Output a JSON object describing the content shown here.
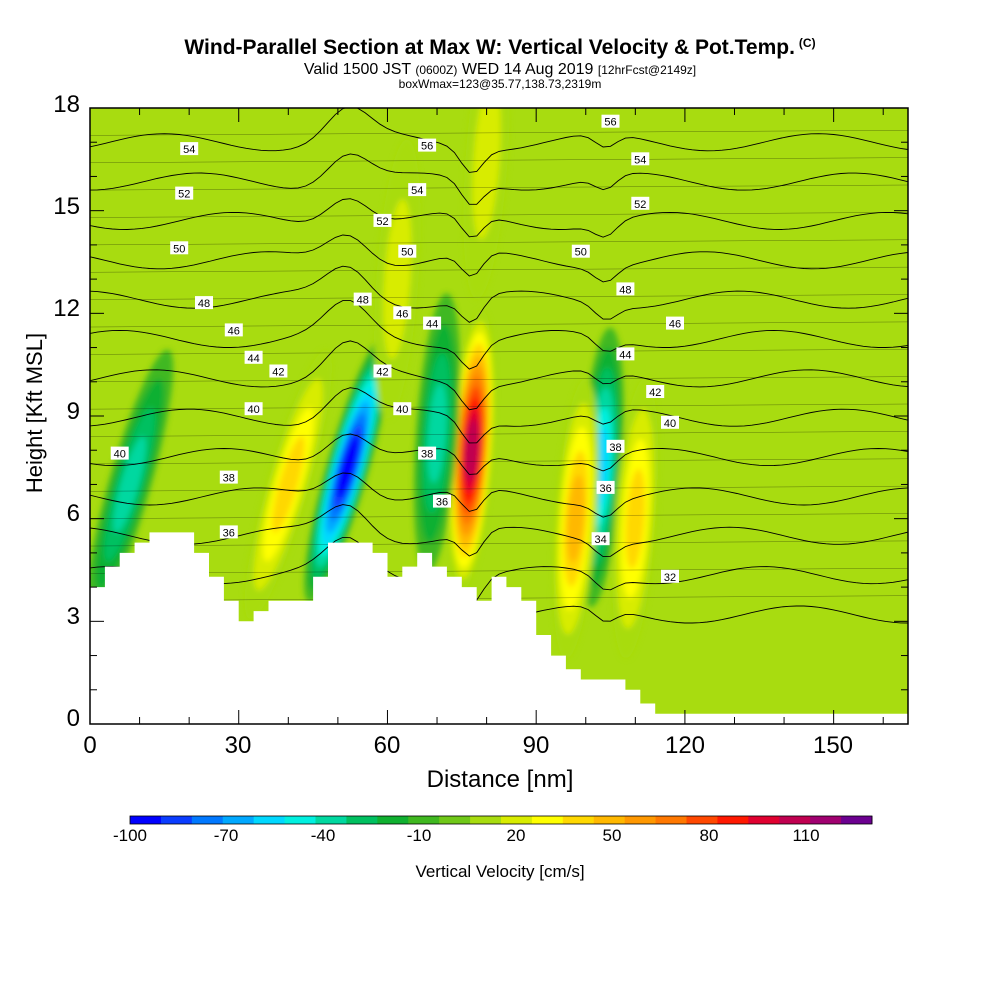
{
  "header": {
    "title": "Wind-Parallel Section at Max W: Vertical Velocity & Pot.Temp.",
    "copyright": "(C)",
    "valid_prefix": "Valid 1500 JST",
    "valid_utc": "(0600Z)",
    "valid_date": "WED 14 Aug 2019",
    "forecast": "[12hrFcst@2149z]",
    "boxwmax": "boxWmax=123@35.77,138.73,2319m"
  },
  "chart_data": {
    "type": "heatmap",
    "title": "Wind-Parallel Section at Max W: Vertical Velocity & Pot.Temp.",
    "xlabel": "Distance [nm]",
    "ylabel": "Height [Kft MSL]",
    "xlim": [
      0,
      165
    ],
    "ylim": [
      0,
      18
    ],
    "xticks": [
      "0",
      "30",
      "60",
      "90",
      "120",
      "150"
    ],
    "yticks": [
      "0",
      "3",
      "6",
      "9",
      "12",
      "15",
      "18"
    ],
    "colorbar": {
      "label": "Vertical Velocity [cm/s]",
      "tick_labels": [
        "-100",
        "-70",
        "-40",
        "-10",
        "20",
        "50",
        "80",
        "110"
      ],
      "levels": [
        -100,
        -90,
        -80,
        -70,
        -60,
        -50,
        -40,
        -30,
        -20,
        -10,
        0,
        10,
        20,
        30,
        40,
        50,
        60,
        70,
        80,
        90,
        100,
        110,
        120,
        130
      ],
      "colors": [
        "#0000ff",
        "#0a3cff",
        "#0078ff",
        "#00a8ff",
        "#00d8ff",
        "#00f0e0",
        "#00d8a0",
        "#00c060",
        "#10b030",
        "#40b820",
        "#70c818",
        "#a8dc10",
        "#d8ec00",
        "#ffff00",
        "#ffd800",
        "#ffb800",
        "#ff9800",
        "#ff7800",
        "#ff4800",
        "#ff1800",
        "#e00030",
        "#c00050",
        "#a00070",
        "#6c0090"
      ]
    },
    "vertical_velocity_features": [
      {
        "x": 52,
        "y": 7.5,
        "value": -100,
        "kind": "downdraft"
      },
      {
        "x": 77,
        "y": 8.0,
        "value": 110,
        "kind": "updraft"
      },
      {
        "x": 103,
        "y": 7.5,
        "value": -60,
        "kind": "downdraft"
      },
      {
        "x": 98,
        "y": 6.0,
        "value": 45,
        "kind": "updraft"
      },
      {
        "x": 110,
        "y": 6.0,
        "value": 40,
        "kind": "updraft"
      },
      {
        "x": 40,
        "y": 7.0,
        "value": 35,
        "kind": "updraft"
      },
      {
        "x": 70,
        "y": 8.5,
        "value": -40,
        "kind": "downdraft"
      },
      {
        "x": 8,
        "y": 7.0,
        "value": -35,
        "kind": "downdraft"
      },
      {
        "x": 62,
        "y": 13.0,
        "value": 15,
        "kind": "updraft"
      },
      {
        "x": 80,
        "y": 16.5,
        "value": 20,
        "kind": "updraft"
      }
    ],
    "theta_contours": [
      "32",
      "34",
      "36",
      "38",
      "40",
      "42",
      "44",
      "46",
      "48",
      "50",
      "52",
      "54",
      "56"
    ],
    "contour_labels": [
      {
        "text": "54",
        "x": 20,
        "y": 16.8
      },
      {
        "text": "52",
        "x": 19,
        "y": 15.5
      },
      {
        "text": "50",
        "x": 18,
        "y": 13.9
      },
      {
        "text": "48",
        "x": 23,
        "y": 12.3
      },
      {
        "text": "46",
        "x": 29,
        "y": 11.5
      },
      {
        "text": "44",
        "x": 33,
        "y": 10.7
      },
      {
        "text": "42",
        "x": 38,
        "y": 10.3
      },
      {
        "text": "40",
        "x": 33,
        "y": 9.2
      },
      {
        "text": "40",
        "x": 6,
        "y": 7.9
      },
      {
        "text": "38",
        "x": 28,
        "y": 7.2
      },
      {
        "text": "36",
        "x": 28,
        "y": 5.6
      },
      {
        "text": "56",
        "x": 68,
        "y": 16.9
      },
      {
        "text": "54",
        "x": 66,
        "y": 15.6
      },
      {
        "text": "52",
        "x": 59,
        "y": 14.7
      },
      {
        "text": "50",
        "x": 64,
        "y": 13.8
      },
      {
        "text": "48",
        "x": 55,
        "y": 12.4
      },
      {
        "text": "46",
        "x": 63,
        "y": 12.0
      },
      {
        "text": "44",
        "x": 69,
        "y": 11.7
      },
      {
        "text": "42",
        "x": 59,
        "y": 10.3
      },
      {
        "text": "40",
        "x": 63,
        "y": 9.2
      },
      {
        "text": "38",
        "x": 68,
        "y": 7.9
      },
      {
        "text": "36",
        "x": 71,
        "y": 6.5
      },
      {
        "text": "56",
        "x": 105,
        "y": 17.6
      },
      {
        "text": "54",
        "x": 111,
        "y": 16.5
      },
      {
        "text": "52",
        "x": 111,
        "y": 15.2
      },
      {
        "text": "50",
        "x": 99,
        "y": 13.8
      },
      {
        "text": "48",
        "x": 108,
        "y": 12.7
      },
      {
        "text": "46",
        "x": 118,
        "y": 11.7
      },
      {
        "text": "44",
        "x": 108,
        "y": 10.8
      },
      {
        "text": "42",
        "x": 114,
        "y": 9.7
      },
      {
        "text": "40",
        "x": 117,
        "y": 8.8
      },
      {
        "text": "38",
        "x": 106,
        "y": 8.1
      },
      {
        "text": "36",
        "x": 104,
        "y": 6.9
      },
      {
        "text": "34",
        "x": 103,
        "y": 5.4
      },
      {
        "text": "32",
        "x": 117,
        "y": 4.3
      }
    ],
    "terrain_profile": [
      [
        0,
        4.0
      ],
      [
        3,
        4.0
      ],
      [
        3,
        4.6
      ],
      [
        6,
        4.6
      ],
      [
        6,
        5.0
      ],
      [
        9,
        5.0
      ],
      [
        9,
        5.3
      ],
      [
        12,
        5.3
      ],
      [
        12,
        5.6
      ],
      [
        21,
        5.6
      ],
      [
        21,
        5.0
      ],
      [
        24,
        5.0
      ],
      [
        24,
        4.3
      ],
      [
        27,
        4.3
      ],
      [
        27,
        3.6
      ],
      [
        30,
        3.6
      ],
      [
        30,
        3.0
      ],
      [
        33,
        3.0
      ],
      [
        33,
        3.3
      ],
      [
        36,
        3.3
      ],
      [
        36,
        3.6
      ],
      [
        45,
        3.6
      ],
      [
        45,
        4.3
      ],
      [
        48,
        4.3
      ],
      [
        48,
        5.3
      ],
      [
        57,
        5.3
      ],
      [
        57,
        5.0
      ],
      [
        60,
        5.0
      ],
      [
        60,
        4.3
      ],
      [
        63,
        4.3
      ],
      [
        63,
        4.6
      ],
      [
        66,
        4.6
      ],
      [
        66,
        5.0
      ],
      [
        69,
        5.0
      ],
      [
        69,
        4.6
      ],
      [
        72,
        4.6
      ],
      [
        72,
        4.3
      ],
      [
        75,
        4.3
      ],
      [
        75,
        4.0
      ],
      [
        78,
        4.0
      ],
      [
        78,
        3.6
      ],
      [
        81,
        3.6
      ],
      [
        81,
        4.3
      ],
      [
        84,
        4.3
      ],
      [
        84,
        4.0
      ],
      [
        87,
        4.0
      ],
      [
        87,
        3.6
      ],
      [
        90,
        3.6
      ],
      [
        90,
        2.6
      ],
      [
        93,
        2.6
      ],
      [
        93,
        2.0
      ],
      [
        96,
        2.0
      ],
      [
        96,
        1.6
      ],
      [
        99,
        1.6
      ],
      [
        99,
        1.3
      ],
      [
        108,
        1.3
      ],
      [
        108,
        1.0
      ],
      [
        111,
        1.0
      ],
      [
        111,
        0.6
      ],
      [
        114,
        0.6
      ],
      [
        114,
        0.3
      ],
      [
        165,
        0.3
      ]
    ]
  }
}
